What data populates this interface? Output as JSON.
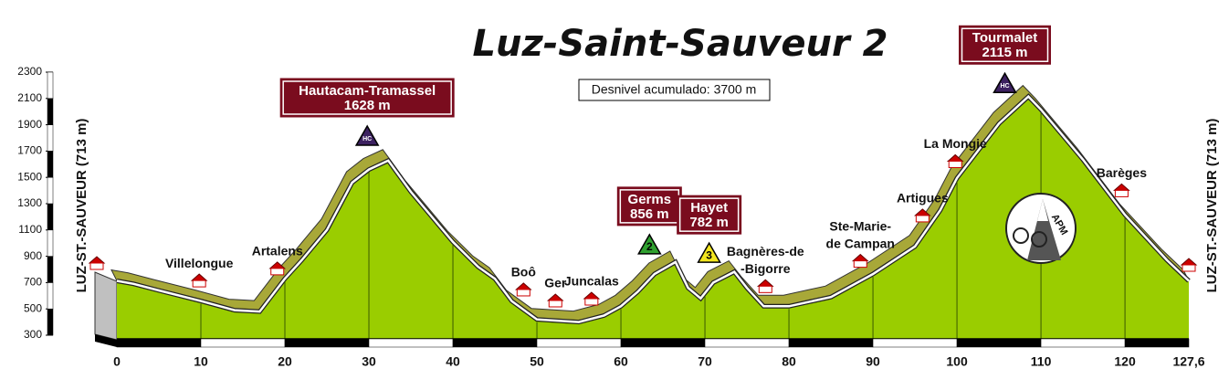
{
  "chart_data": {
    "type": "area",
    "title": "Luz-Saint-Sauveur 2",
    "annotation": "Desnivel acumulado: 3700 m",
    "start_label": "LUZ-ST.-SAUVEUR (713 m)",
    "end_label": "LUZ-ST.-SAUVEUR (713 m)",
    "logo_text": "APM",
    "x": [
      0,
      2,
      5,
      10,
      14,
      17,
      20,
      22,
      25,
      28,
      30,
      32.3,
      35,
      40,
      43,
      45,
      47,
      50,
      55,
      58,
      60,
      62,
      64,
      66.5,
      68,
      69.5,
      71,
      73.5,
      75,
      77,
      80,
      85,
      90,
      95,
      98,
      100,
      105,
      108.5,
      110,
      115,
      120,
      125,
      127.6
    ],
    "values": [
      713,
      690,
      640,
      560,
      490,
      480,
      730,
      870,
      1100,
      1460,
      1560,
      1628,
      1390,
      1010,
      820,
      730,
      560,
      420,
      400,
      450,
      520,
      630,
      765,
      856,
      660,
      580,
      700,
      782,
      660,
      520,
      520,
      590,
      765,
      975,
      1250,
      1495,
      1910,
      2115,
      2015,
      1635,
      1215,
      870,
      713
    ],
    "color": "#9acd00",
    "band_color": "#a8a838",
    "xlim": [
      0,
      127.6
    ],
    "xticks": [
      0,
      10,
      20,
      30,
      40,
      50,
      60,
      70,
      80,
      90,
      100,
      110,
      120,
      {
        "value": 127.6,
        "label": "127,6"
      }
    ],
    "ylim": [
      300,
      2300
    ],
    "yticks": [
      300,
      500,
      700,
      900,
      1100,
      1300,
      1500,
      1700,
      1900,
      2100,
      2300
    ],
    "climbs": [
      {
        "name": "Hautacam-Tramassel",
        "height": "1628 m",
        "category": "HC",
        "km": 29.8,
        "color": "#3c2160"
      },
      {
        "name": "Germs",
        "height": "856 m",
        "category": "2",
        "km": 63.4,
        "color": "#2fa02f"
      },
      {
        "name": "Hayet",
        "height": "782 m",
        "category": "3",
        "km": 70.5,
        "color": "#f2e51e"
      },
      {
        "name": "Tourmalet",
        "height": "2115 m",
        "category": "HC",
        "km": 105.7,
        "color": "#3c2160"
      }
    ],
    "towns": [
      {
        "lines": [
          "Villelongue"
        ],
        "km": 9.8
      },
      {
        "lines": [
          "Artalens"
        ],
        "km": 19.1
      },
      {
        "lines": [
          "Boô"
        ],
        "km": 48.4
      },
      {
        "lines": [
          "Ger"
        ],
        "km": 52.2
      },
      {
        "lines": [
          "Juncalas"
        ],
        "km": 56.5
      },
      {
        "lines": [
          "Bagnères-de",
          "-Bigorre"
        ],
        "km": 77.2
      },
      {
        "lines": [
          "Ste-Marie-",
          "de Campan"
        ],
        "km": 88.5
      },
      {
        "lines": [
          "Artigues"
        ],
        "km": 95.9
      },
      {
        "lines": [
          "La Mongie"
        ],
        "km": 99.8
      },
      {
        "lines": [
          "Barèges"
        ],
        "km": 119.6
      }
    ]
  }
}
